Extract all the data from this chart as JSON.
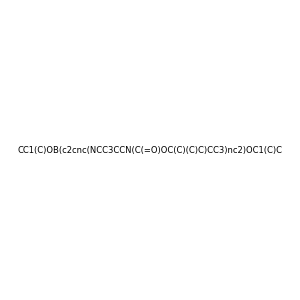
{
  "smiles": "CC1(C)OB(c2cnc(NCC3CCN(C(=O)OC(C)(C)C)CC3)nc2)OC1(C)C",
  "title": "",
  "bg_color": "#e8eef2",
  "figsize": [
    3.0,
    3.0
  ],
  "dpi": 100,
  "img_size": [
    300,
    300
  ],
  "atom_colors": {
    "N": "#0000ff",
    "O": "#ff0000",
    "B": "#00cc00"
  }
}
